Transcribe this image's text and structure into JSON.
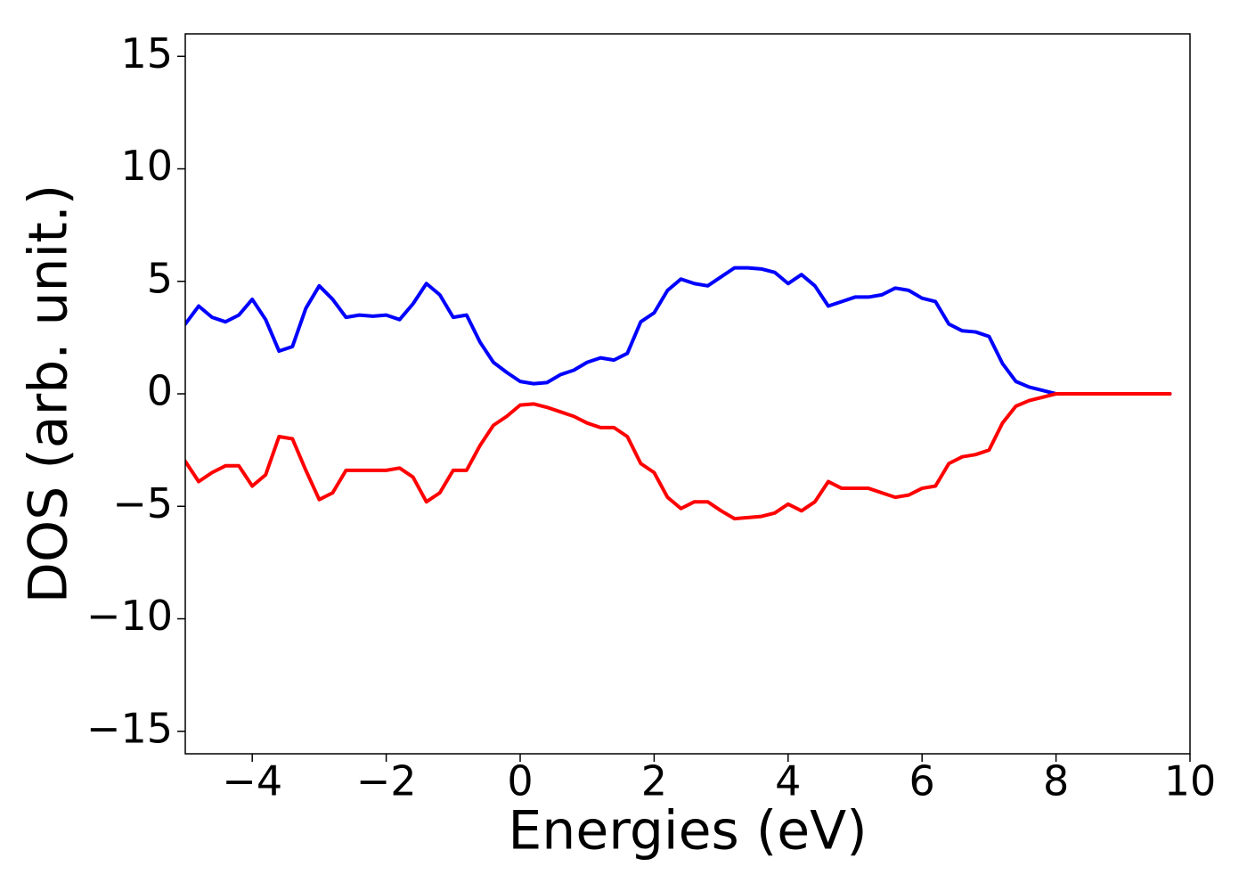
{
  "chart_data": {
    "type": "line",
    "x_label": "Energies (eV)",
    "y_label": "DOS (arb. unit.)",
    "x": [
      -5.0,
      -4.8,
      -4.6,
      -4.4,
      -4.2,
      -4.0,
      -3.8,
      -3.6,
      -3.4,
      -3.2,
      -3.0,
      -2.8,
      -2.6,
      -2.4,
      -2.2,
      -2.0,
      -1.8,
      -1.6,
      -1.4,
      -1.2,
      -1.0,
      -0.8,
      -0.6,
      -0.4,
      -0.2,
      0.0,
      0.2,
      0.4,
      0.6,
      0.8,
      1.0,
      1.2,
      1.4,
      1.6,
      1.8,
      2.0,
      2.2,
      2.4,
      2.6,
      2.8,
      3.0,
      3.2,
      3.4,
      3.6,
      3.8,
      4.0,
      4.2,
      4.4,
      4.6,
      4.8,
      5.0,
      5.2,
      5.4,
      5.6,
      5.8,
      6.0,
      6.2,
      6.4,
      6.6,
      6.8,
      7.0,
      7.2,
      7.4,
      7.6,
      7.8,
      8.0,
      8.5,
      9.0,
      9.7
    ],
    "series": [
      {
        "color": "#0000ff",
        "values": [
          3.1,
          3.9,
          3.4,
          3.2,
          3.5,
          4.2,
          3.3,
          1.9,
          2.1,
          3.8,
          4.8,
          4.2,
          3.4,
          3.5,
          3.45,
          3.5,
          3.3,
          4.0,
          4.9,
          4.4,
          3.4,
          3.5,
          2.3,
          1.4,
          0.95,
          0.55,
          0.45,
          0.5,
          0.85,
          1.05,
          1.4,
          1.6,
          1.5,
          1.8,
          3.2,
          3.6,
          4.6,
          5.1,
          4.9,
          4.8,
          5.2,
          5.6,
          5.6,
          5.55,
          5.4,
          4.9,
          5.3,
          4.8,
          3.9,
          4.1,
          4.3,
          4.3,
          4.4,
          4.7,
          4.6,
          4.25,
          4.1,
          3.1,
          2.8,
          2.75,
          2.55,
          1.35,
          0.55,
          0.3,
          0.15,
          0,
          0,
          0,
          0
        ]
      },
      {
        "color": "#ff0000",
        "values": [
          -3.0,
          -3.9,
          -3.5,
          -3.2,
          -3.2,
          -4.1,
          -3.6,
          -1.9,
          -2.0,
          -3.4,
          -4.7,
          -4.4,
          -3.4,
          -3.4,
          -3.4,
          -3.4,
          -3.3,
          -3.7,
          -4.8,
          -4.4,
          -3.4,
          -3.4,
          -2.3,
          -1.4,
          -1.0,
          -0.5,
          -0.45,
          -0.6,
          -0.8,
          -1.0,
          -1.3,
          -1.5,
          -1.5,
          -1.9,
          -3.1,
          -3.5,
          -4.6,
          -5.1,
          -4.8,
          -4.8,
          -5.2,
          -5.55,
          -5.5,
          -5.45,
          -5.3,
          -4.9,
          -5.2,
          -4.8,
          -3.9,
          -4.2,
          -4.2,
          -4.2,
          -4.4,
          -4.6,
          -4.5,
          -4.2,
          -4.1,
          -3.1,
          -2.8,
          -2.7,
          -2.5,
          -1.3,
          -0.55,
          -0.3,
          -0.15,
          0,
          0,
          0,
          0
        ]
      }
    ],
    "xlim": [
      -5,
      10
    ],
    "xticks": [
      {
        "value": -4,
        "label": "−4"
      },
      {
        "value": -2,
        "label": "−2"
      },
      0,
      2,
      4,
      6,
      8,
      10
    ],
    "ylim": [
      -16,
      16
    ],
    "yticks": [
      {
        "value": -15,
        "label": "−15"
      },
      {
        "value": -10,
        "label": "−10"
      },
      {
        "value": -5,
        "label": "−5"
      },
      0,
      5,
      10,
      15
    ],
    "grid": false
  }
}
